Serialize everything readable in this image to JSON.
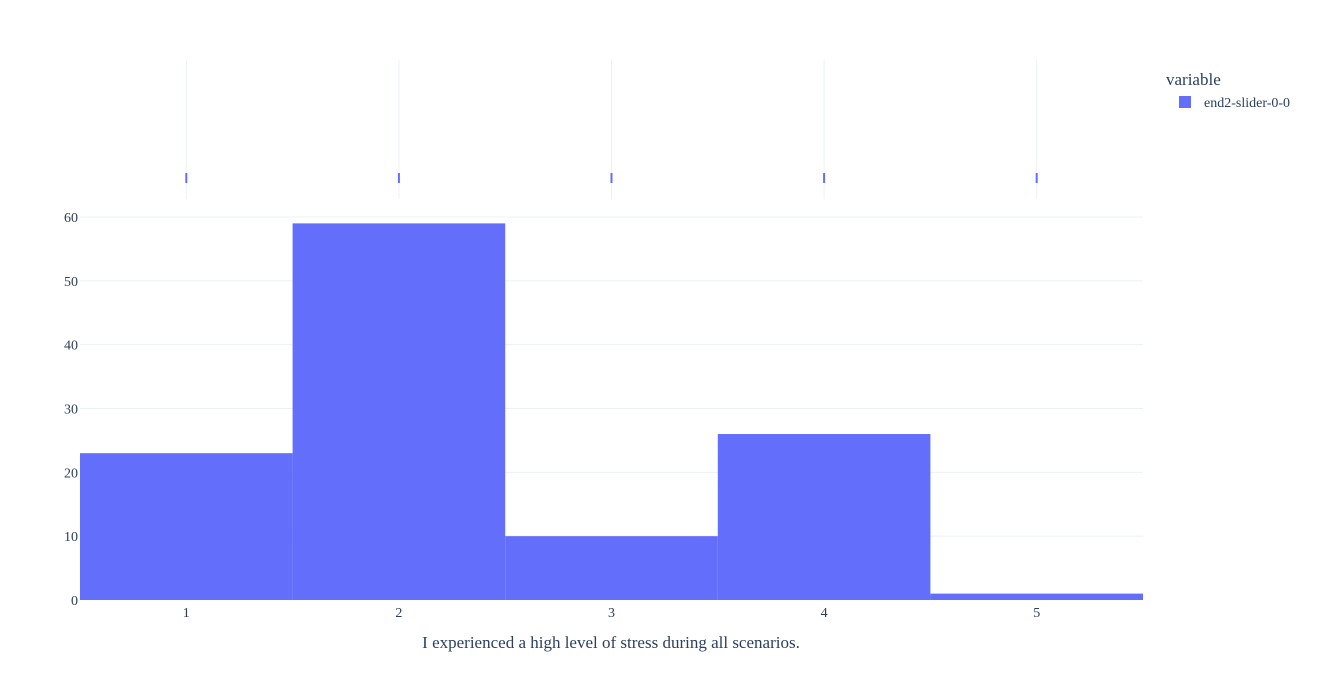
{
  "chart_data": {
    "type": "bar",
    "categories": [
      "1",
      "2",
      "3",
      "4",
      "5"
    ],
    "x": [
      1,
      2,
      3,
      4,
      5
    ],
    "series": [
      {
        "name": "end2-slider-0-0",
        "values": [
          23,
          59,
          10,
          26,
          1
        ],
        "color": "#636efa"
      }
    ],
    "title": "",
    "xlabel": "I experienced a high level of stress during all scenarios.",
    "ylabel": "",
    "xlim": [
      0.5,
      5.5
    ],
    "ylim": [
      0,
      60
    ],
    "yticks": [
      0,
      10,
      20,
      30,
      40,
      50,
      60
    ],
    "grid": true,
    "legend": {
      "title": "variable",
      "position": "top-right",
      "entries": [
        "end2-slider-0-0"
      ]
    },
    "marginal": {
      "type": "rug",
      "values": [
        1,
        2,
        3,
        4,
        5
      ]
    }
  },
  "colors": {
    "bar": "#636efa",
    "grid": "#ebf0f8",
    "text": "#2a3f5f",
    "background": "#ffffff"
  }
}
